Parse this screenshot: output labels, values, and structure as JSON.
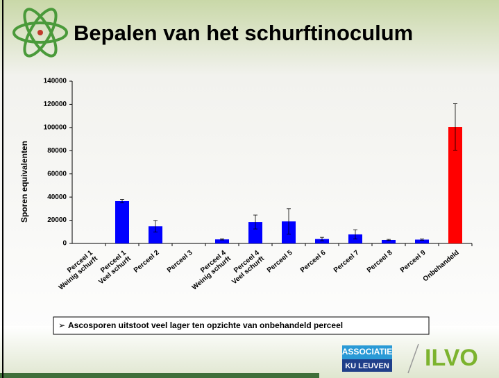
{
  "header": {
    "title": "Bepalen van het schurftinoculum"
  },
  "chart_data": {
    "type": "bar",
    "y_label": "Sporen equivalenten",
    "categories": [
      "Perceel 1\nWeinig schurft",
      "Perceel 1\nVeel schurft",
      "Perceel 2",
      "Perceel 3",
      "Perceel 4\nWeinig schurft",
      "Perceel 4\nVeel schurft",
      "Perceel 5",
      "Perceel 6",
      "Perceel 7",
      "Perceel 8",
      "Perceel 9",
      "Onbehandeld"
    ],
    "values": [
      0,
      36500,
      14800,
      0,
      3500,
      18500,
      19000,
      3800,
      7800,
      3000,
      3300,
      100500
    ],
    "errors": [
      0,
      1500,
      5000,
      0,
      500,
      6000,
      11000,
      1500,
      4000,
      500,
      500,
      20000
    ],
    "colors": [
      "#0000ff",
      "#0000ff",
      "#0000ff",
      "#0000ff",
      "#0000ff",
      "#0000ff",
      "#0000ff",
      "#0000ff",
      "#0000ff",
      "#0000ff",
      "#0000ff",
      "#ff0000"
    ],
    "ylim": [
      0,
      140000
    ],
    "yticks": [
      0,
      20000,
      40000,
      60000,
      80000,
      100000,
      120000,
      140000
    ]
  },
  "note": "Ascosporen uitstoot veel lager ten opzichte van onbehandeld perceel",
  "logos": {
    "associatie": "ASSOCIATIE",
    "ku_leuven": "KU LEUVEN",
    "ilvo": "ILVO"
  }
}
